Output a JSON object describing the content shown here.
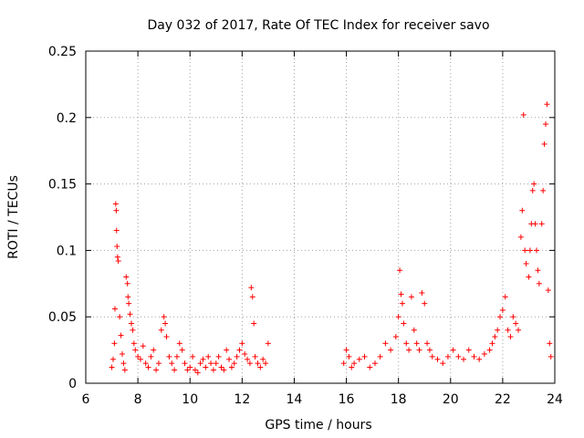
{
  "chart_data": {
    "type": "scatter",
    "title": "Day 032 of 2017, Rate Of TEC Index for receiver savo",
    "xlabel": "GPS time / hours",
    "ylabel": "ROTI / TECUs",
    "xlim": [
      6,
      24
    ],
    "ylim": [
      0,
      0.25
    ],
    "xticks": [
      6,
      8,
      10,
      12,
      14,
      16,
      18,
      20,
      22,
      24
    ],
    "yticks": [
      0,
      0.05,
      0.1,
      0.15,
      0.2,
      0.25
    ],
    "ytick_labels": [
      "0",
      "0.05",
      "0.1",
      "0.15",
      "0.2",
      "0.25"
    ],
    "grid": true,
    "marker": "+",
    "marker_color": "#ff0000",
    "series": [
      {
        "name": "ROTI",
        "points": [
          [
            7.0,
            0.012
          ],
          [
            7.05,
            0.018
          ],
          [
            7.1,
            0.03
          ],
          [
            7.12,
            0.056
          ],
          [
            7.15,
            0.135
          ],
          [
            7.17,
            0.13
          ],
          [
            7.18,
            0.115
          ],
          [
            7.2,
            0.103
          ],
          [
            7.22,
            0.095
          ],
          [
            7.25,
            0.092
          ],
          [
            7.3,
            0.05
          ],
          [
            7.35,
            0.036
          ],
          [
            7.4,
            0.022
          ],
          [
            7.45,
            0.015
          ],
          [
            7.5,
            0.01
          ],
          [
            7.55,
            0.08
          ],
          [
            7.6,
            0.075
          ],
          [
            7.62,
            0.065
          ],
          [
            7.65,
            0.06
          ],
          [
            7.7,
            0.052
          ],
          [
            7.75,
            0.045
          ],
          [
            7.8,
            0.04
          ],
          [
            7.85,
            0.03
          ],
          [
            7.9,
            0.025
          ],
          [
            8.0,
            0.02
          ],
          [
            8.1,
            0.018
          ],
          [
            8.2,
            0.028
          ],
          [
            8.3,
            0.015
          ],
          [
            8.4,
            0.012
          ],
          [
            8.5,
            0.02
          ],
          [
            8.6,
            0.025
          ],
          [
            8.7,
            0.01
          ],
          [
            8.8,
            0.015
          ],
          [
            8.9,
            0.04
          ],
          [
            9.0,
            0.05
          ],
          [
            9.05,
            0.045
          ],
          [
            9.1,
            0.035
          ],
          [
            9.2,
            0.02
          ],
          [
            9.3,
            0.015
          ],
          [
            9.4,
            0.01
          ],
          [
            9.5,
            0.02
          ],
          [
            9.6,
            0.03
          ],
          [
            9.7,
            0.025
          ],
          [
            9.8,
            0.015
          ],
          [
            9.9,
            0.01
          ],
          [
            10.0,
            0.012
          ],
          [
            10.1,
            0.02
          ],
          [
            10.2,
            0.01
          ],
          [
            10.3,
            0.008
          ],
          [
            10.4,
            0.015
          ],
          [
            10.5,
            0.018
          ],
          [
            10.6,
            0.012
          ],
          [
            10.7,
            0.02
          ],
          [
            10.8,
            0.015
          ],
          [
            10.9,
            0.01
          ],
          [
            11.0,
            0.015
          ],
          [
            11.1,
            0.02
          ],
          [
            11.2,
            0.012
          ],
          [
            11.3,
            0.01
          ],
          [
            11.4,
            0.025
          ],
          [
            11.5,
            0.018
          ],
          [
            11.6,
            0.012
          ],
          [
            11.7,
            0.015
          ],
          [
            11.8,
            0.02
          ],
          [
            11.9,
            0.025
          ],
          [
            12.0,
            0.03
          ],
          [
            12.1,
            0.022
          ],
          [
            12.2,
            0.018
          ],
          [
            12.3,
            0.015
          ],
          [
            12.35,
            0.072
          ],
          [
            12.4,
            0.065
          ],
          [
            12.45,
            0.045
          ],
          [
            12.5,
            0.02
          ],
          [
            12.6,
            0.015
          ],
          [
            12.7,
            0.012
          ],
          [
            12.8,
            0.018
          ],
          [
            12.9,
            0.015
          ],
          [
            13.0,
            0.03
          ],
          [
            15.9,
            0.015
          ],
          [
            16.0,
            0.025
          ],
          [
            16.1,
            0.02
          ],
          [
            16.2,
            0.012
          ],
          [
            16.3,
            0.015
          ],
          [
            16.5,
            0.018
          ],
          [
            16.7,
            0.02
          ],
          [
            16.9,
            0.012
          ],
          [
            17.1,
            0.015
          ],
          [
            17.3,
            0.02
          ],
          [
            17.5,
            0.03
          ],
          [
            17.7,
            0.025
          ],
          [
            17.9,
            0.035
          ],
          [
            18.0,
            0.05
          ],
          [
            18.05,
            0.085
          ],
          [
            18.1,
            0.067
          ],
          [
            18.15,
            0.06
          ],
          [
            18.2,
            0.045
          ],
          [
            18.3,
            0.03
          ],
          [
            18.4,
            0.025
          ],
          [
            18.5,
            0.065
          ],
          [
            18.6,
            0.04
          ],
          [
            18.7,
            0.03
          ],
          [
            18.8,
            0.025
          ],
          [
            18.9,
            0.068
          ],
          [
            19.0,
            0.06
          ],
          [
            19.1,
            0.03
          ],
          [
            19.2,
            0.025
          ],
          [
            19.3,
            0.02
          ],
          [
            19.5,
            0.018
          ],
          [
            19.7,
            0.015
          ],
          [
            19.9,
            0.02
          ],
          [
            20.1,
            0.025
          ],
          [
            20.3,
            0.02
          ],
          [
            20.5,
            0.018
          ],
          [
            20.7,
            0.025
          ],
          [
            20.9,
            0.02
          ],
          [
            21.1,
            0.018
          ],
          [
            21.3,
            0.022
          ],
          [
            21.5,
            0.025
          ],
          [
            21.6,
            0.03
          ],
          [
            21.7,
            0.035
          ],
          [
            21.8,
            0.04
          ],
          [
            21.9,
            0.05
          ],
          [
            22.0,
            0.055
          ],
          [
            22.1,
            0.065
          ],
          [
            22.2,
            0.04
          ],
          [
            22.3,
            0.035
          ],
          [
            22.4,
            0.05
          ],
          [
            22.5,
            0.045
          ],
          [
            22.6,
            0.04
          ],
          [
            22.7,
            0.11
          ],
          [
            22.75,
            0.13
          ],
          [
            22.8,
            0.202
          ],
          [
            22.85,
            0.1
          ],
          [
            22.9,
            0.09
          ],
          [
            23.0,
            0.08
          ],
          [
            23.05,
            0.1
          ],
          [
            23.1,
            0.12
          ],
          [
            23.15,
            0.145
          ],
          [
            23.2,
            0.15
          ],
          [
            23.25,
            0.12
          ],
          [
            23.3,
            0.1
          ],
          [
            23.35,
            0.085
          ],
          [
            23.4,
            0.075
          ],
          [
            23.5,
            0.12
          ],
          [
            23.55,
            0.145
          ],
          [
            23.6,
            0.18
          ],
          [
            23.65,
            0.195
          ],
          [
            23.7,
            0.21
          ],
          [
            23.75,
            0.07
          ],
          [
            23.8,
            0.03
          ],
          [
            23.85,
            0.02
          ]
        ]
      }
    ]
  }
}
